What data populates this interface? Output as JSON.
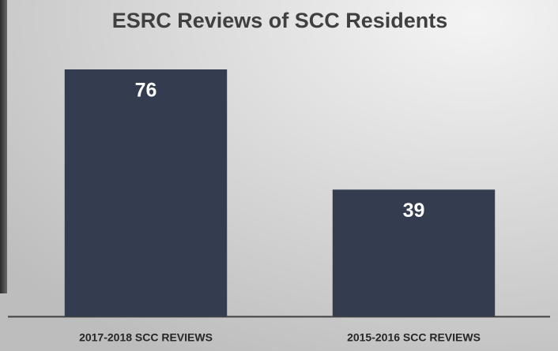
{
  "chart_data": {
    "type": "bar",
    "title": "ESRC Reviews of SCC Residents",
    "categories": [
      "2017-2018 SCC REVIEWS",
      "2015-2016 SCC REVIEWS"
    ],
    "values": [
      76,
      39
    ],
    "color": "#333d4f"
  }
}
